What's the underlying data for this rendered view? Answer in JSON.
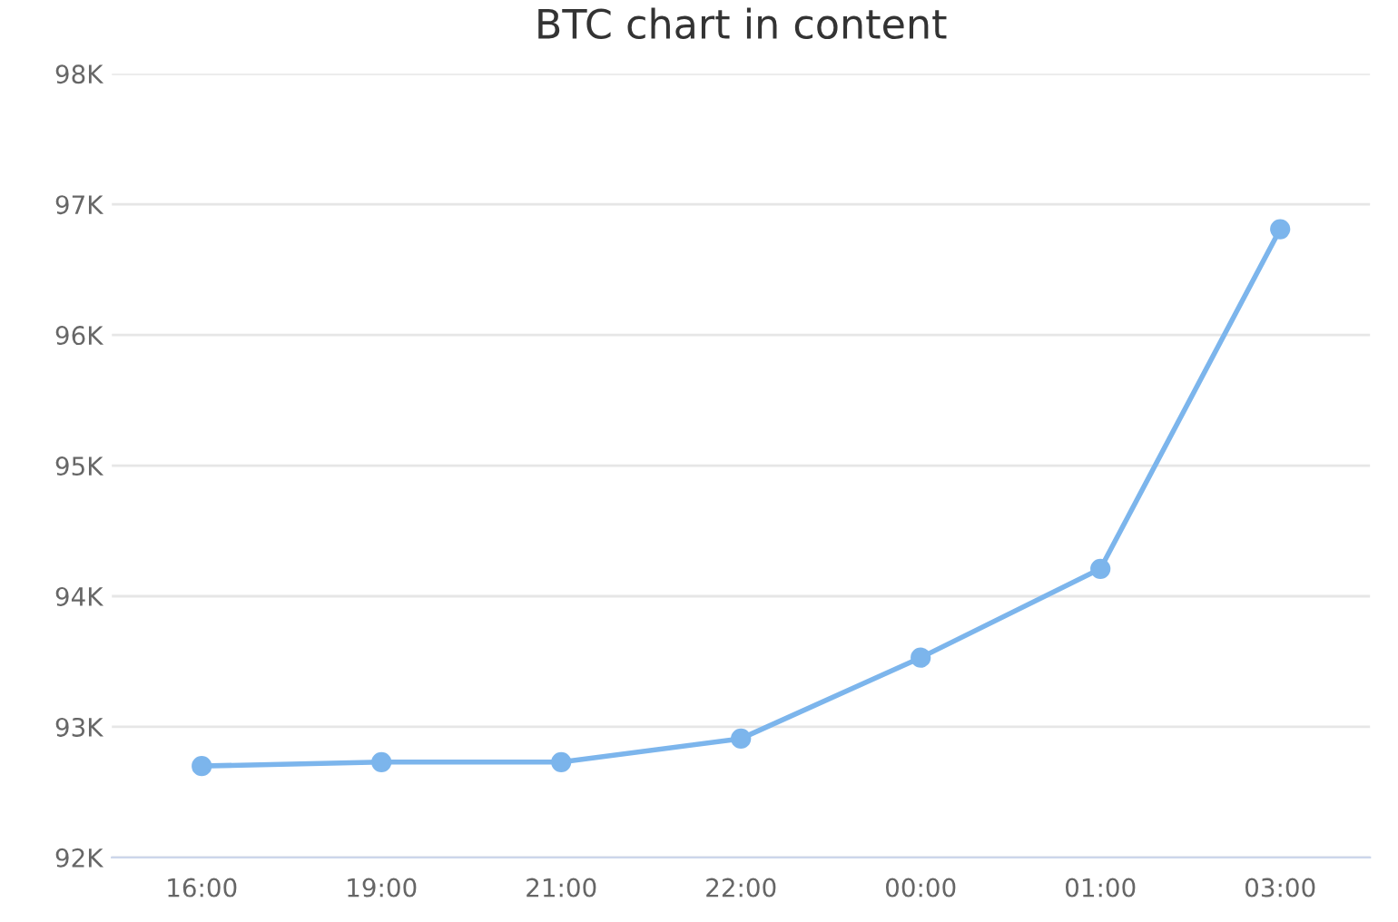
{
  "chart_data": {
    "type": "line",
    "title": "BTC chart in content",
    "categories": [
      "16:00",
      "19:00",
      "21:00",
      "22:00",
      "00:00",
      "01:00",
      "03:00"
    ],
    "series": [
      {
        "color": "#7cb5ec",
        "values": [
          92700,
          92730,
          92730,
          92910,
          93530,
          94210,
          96810
        ]
      }
    ],
    "ylim": [
      92000,
      98000
    ],
    "yticks": [
      {
        "value": 92000,
        "label": "92K"
      },
      {
        "value": 93000,
        "label": "93K"
      },
      {
        "value": 94000,
        "label": "94K"
      },
      {
        "value": 95000,
        "label": "95K"
      },
      {
        "value": 96000,
        "label": "96K"
      },
      {
        "value": 97000,
        "label": "97K"
      },
      {
        "value": 98000,
        "label": "98K"
      }
    ],
    "grid": "y",
    "marker": "circle",
    "line_style": "solid"
  }
}
